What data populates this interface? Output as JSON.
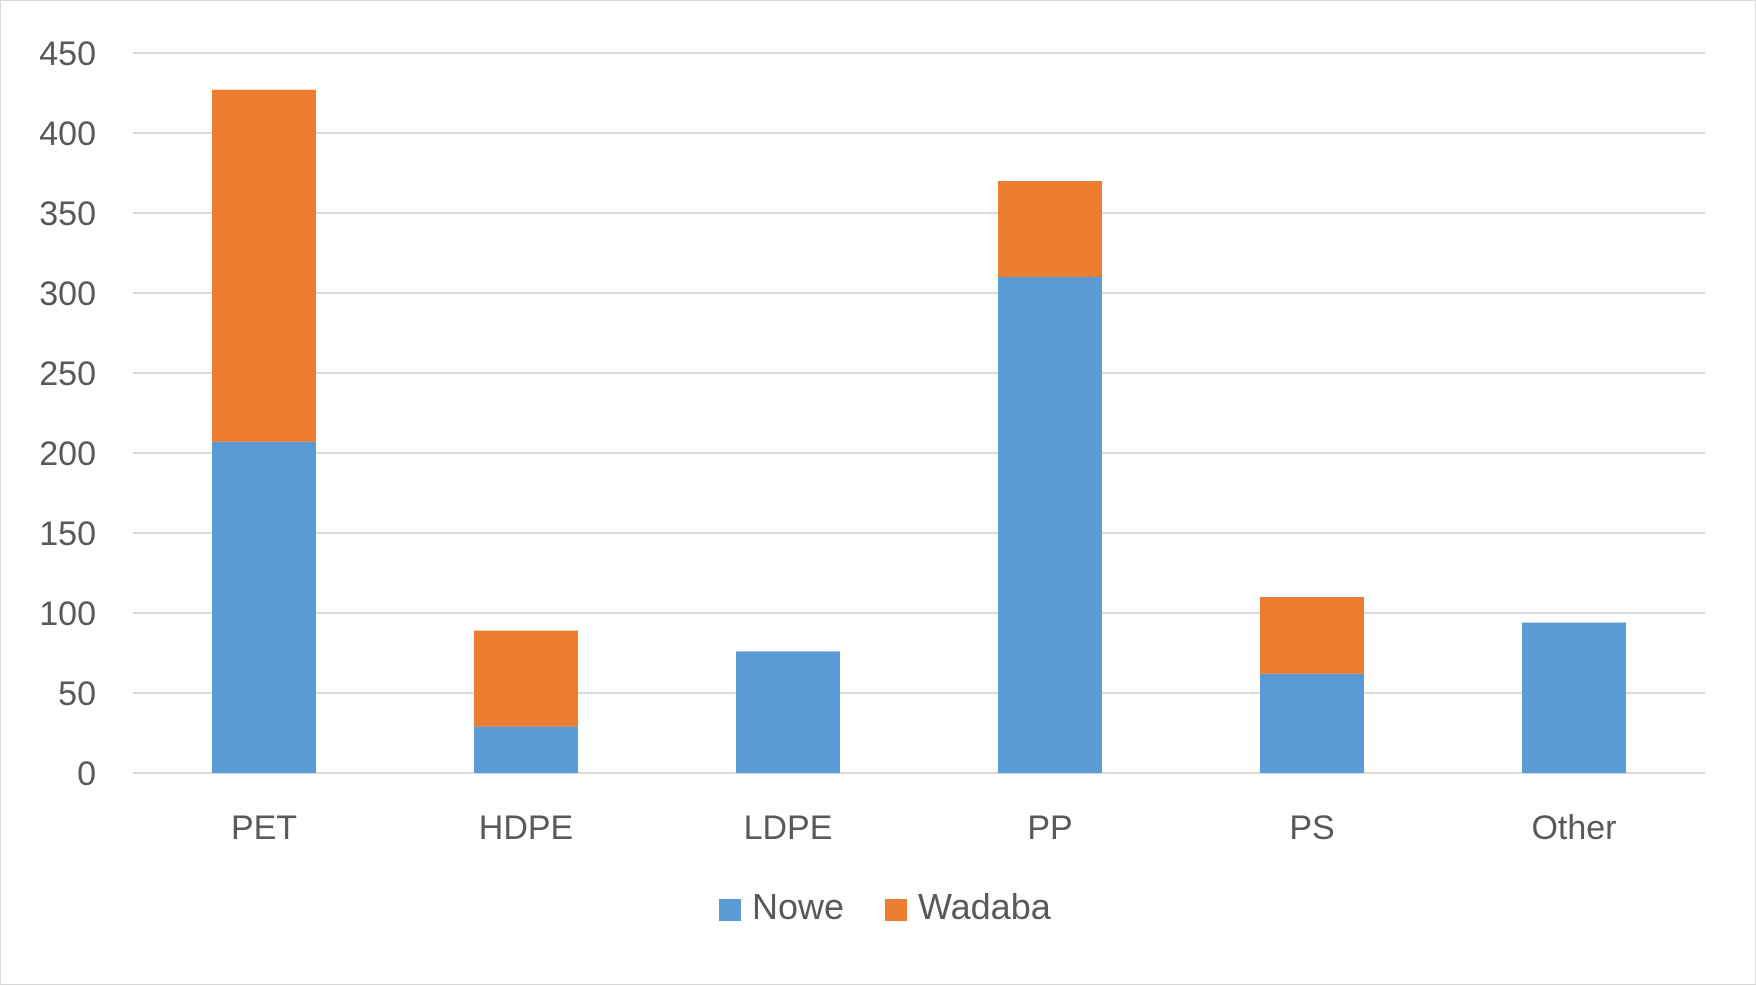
{
  "chart_data": {
    "type": "bar",
    "stacked": true,
    "categories": [
      "PET",
      "HDPE",
      "LDPE",
      "PP",
      "PS",
      "Other"
    ],
    "series": [
      {
        "name": "Nowe",
        "color": "#5b9bd5",
        "values": [
          207,
          29,
          76,
          310,
          62,
          94
        ]
      },
      {
        "name": "Wadaba",
        "color": "#ed7d31",
        "values": [
          220,
          60,
          0,
          60,
          48,
          0
        ]
      }
    ],
    "ylim": [
      0,
      450
    ],
    "yticks": [
      "0",
      "50",
      "100",
      "150",
      "200",
      "250",
      "300",
      "350",
      "400",
      "450"
    ],
    "grid": true,
    "legend_position": "bottom"
  }
}
